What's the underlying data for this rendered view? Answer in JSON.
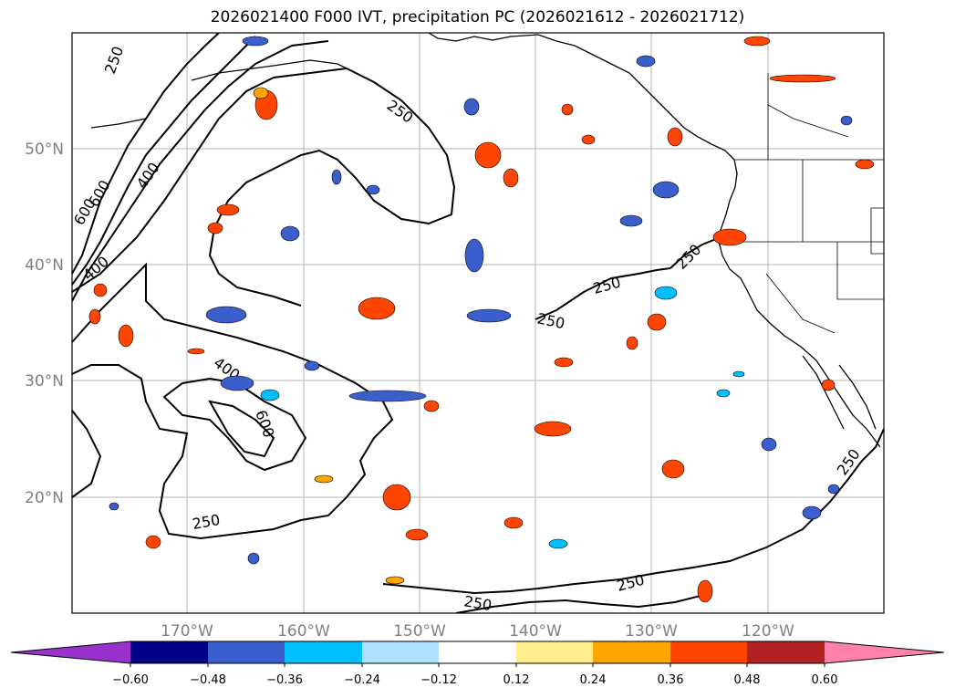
{
  "title": "2026021400 F000 IVT, precipitation PC (2026021612 - 2026021712)",
  "lat_labels": [
    "50°N",
    "40°N",
    "30°N",
    "20°N"
  ],
  "lon_labels": [
    "170°W",
    "160°W",
    "150°W",
    "140°W",
    "130°W",
    "120°W"
  ],
  "colorbar": {
    "colors": [
      "#9932CC",
      "#00008B",
      "#3A5FCD",
      "#00BFFF",
      "#B0E2FF",
      "#FFFFFF",
      "#FFEC8B",
      "#FFA500",
      "#FF4500",
      "#B22222",
      "#FF82AB"
    ],
    "ticks": [
      "−0.60",
      "−0.48",
      "−0.36",
      "−0.24",
      "−0.12",
      "0.12",
      "0.24",
      "0.36",
      "0.48",
      "0.60"
    ]
  },
  "contour_labels": [
    {
      "text": "250",
      "id": "c250-a"
    },
    {
      "text": "250",
      "id": "c250-b"
    },
    {
      "text": "400",
      "id": "c400-a"
    },
    {
      "text": "600",
      "id": "c600-a"
    },
    {
      "text": "600",
      "id": "c600-b"
    },
    {
      "text": "400",
      "id": "c400-b"
    },
    {
      "text": "250",
      "id": "c250-c"
    },
    {
      "text": "250",
      "id": "c250-d"
    },
    {
      "text": "250",
      "id": "c250-e"
    },
    {
      "text": "400",
      "id": "c400-c"
    },
    {
      "text": "600",
      "id": "c600-c"
    },
    {
      "text": "250",
      "id": "c250-f"
    },
    {
      "text": "250",
      "id": "c250-g"
    },
    {
      "text": "250",
      "id": "c250-h"
    },
    {
      "text": "250",
      "id": "c250-i"
    }
  ]
}
